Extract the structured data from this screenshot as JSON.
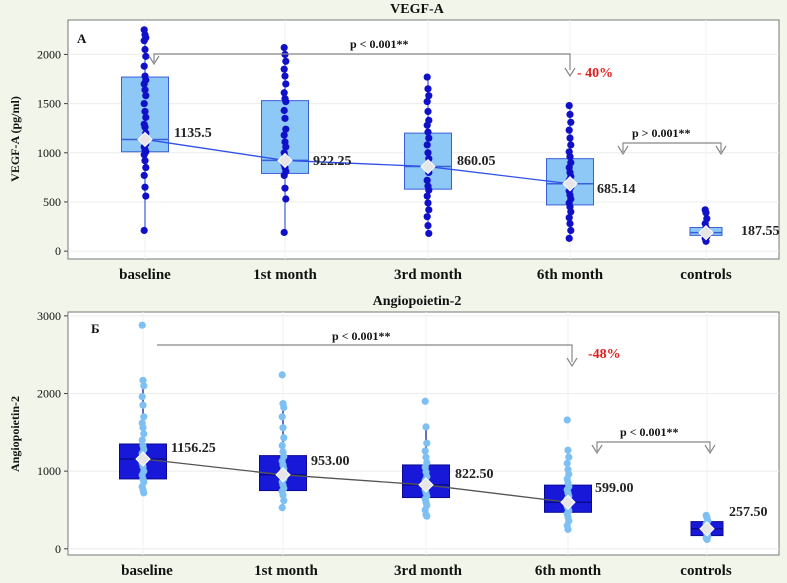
{
  "chart_data": [
    {
      "type": "box",
      "title": "VEGF-A",
      "panel_label": "A",
      "ylabel": "VEGF-A (pg/ml)",
      "xlabel": "",
      "ylim": [
        -80,
        2350
      ],
      "yticks": [
        0,
        500,
        1000,
        1500,
        2000
      ],
      "categories": [
        "baseline",
        "1st month",
        "3rd month",
        "6th month",
        "controls"
      ],
      "box_color": "#8ec8f6",
      "box_edge": "#3a5fd8",
      "point_color": "#1010c8",
      "line_color": "#3050e8",
      "boxes": [
        {
          "whisker_low": 210,
          "q1": 1010,
          "median": 1135.5,
          "q3": 1770,
          "whisker_high": 2250,
          "points": [
            2250,
            2200,
            2170,
            2140,
            2050,
            1980,
            1880,
            1780,
            1740,
            1700,
            1640,
            1580,
            1500,
            1420,
            1360,
            1290,
            1260,
            1200,
            1150,
            1120,
            1090,
            1060,
            1030,
            1010,
            980,
            920,
            850,
            770,
            650,
            560,
            210
          ]
        },
        {
          "whisker_low": 190,
          "q1": 790,
          "median": 922.25,
          "q3": 1530,
          "whisker_high": 2070,
          "points": [
            2070,
            2000,
            1930,
            1850,
            1780,
            1700,
            1610,
            1550,
            1520,
            1430,
            1350,
            1240,
            1180,
            1110,
            1060,
            1000,
            960,
            920,
            880,
            850,
            810,
            770,
            640,
            530,
            190
          ]
        },
        {
          "whisker_low": 180,
          "q1": 630,
          "median": 860.05,
          "q3": 1200,
          "whisker_high": 1770,
          "points": [
            1770,
            1650,
            1580,
            1520,
            1420,
            1330,
            1280,
            1210,
            1150,
            1080,
            1000,
            940,
            880,
            840,
            800,
            720,
            660,
            620,
            560,
            490,
            420,
            350,
            260,
            180
          ]
        },
        {
          "whisker_low": 130,
          "q1": 470,
          "median": 685.14,
          "q3": 940,
          "whisker_high": 1480,
          "points": [
            1480,
            1390,
            1310,
            1230,
            1150,
            1080,
            1010,
            960,
            900,
            850,
            800,
            760,
            720,
            690,
            650,
            610,
            570,
            530,
            490,
            450,
            400,
            340,
            280,
            210,
            130
          ]
        },
        {
          "whisker_low": 100,
          "q1": 160,
          "median": 187.55,
          "q3": 240,
          "whisker_high": 420,
          "points": [
            420,
            390,
            330,
            280,
            240,
            210,
            190,
            170,
            150,
            130,
            100
          ]
        }
      ],
      "median_labels": [
        "1135.5",
        "922.25",
        "860.05",
        "685.14",
        "187.55"
      ],
      "annotations": [
        {
          "text": "p < 0.001**",
          "from": "baseline",
          "to": "6th month"
        },
        {
          "text": "p > 0.001**",
          "from": "6th month",
          "to": "controls"
        },
        {
          "text": "- 40%",
          "at": "6th month"
        }
      ]
    },
    {
      "type": "box",
      "title": "Angiopoietin-2",
      "panel_label": "Б",
      "ylabel": "Angiopoietin-2",
      "xlabel": "",
      "ylim": [
        -80,
        3050
      ],
      "yticks": [
        0,
        1000,
        2000,
        3000
      ],
      "categories": [
        "baseline",
        "1st month",
        "3rd month",
        "6th month",
        "controls"
      ],
      "box_color": "#1818d8",
      "box_edge": "#0a0a90",
      "point_color": "#7ec0f4",
      "line_color": "#555555",
      "boxes": [
        {
          "whisker_low": 720,
          "q1": 900,
          "median": 1156.25,
          "q3": 1350,
          "whisker_high": 2170,
          "points": [
            2880,
            2170,
            2100,
            1960,
            1850,
            1700,
            1620,
            1560,
            1480,
            1400,
            1330,
            1280,
            1230,
            1180,
            1140,
            1100,
            1060,
            1000,
            950,
            900,
            860,
            800,
            760,
            720
          ]
        },
        {
          "whisker_low": 530,
          "q1": 750,
          "median": 953.0,
          "q3": 1200,
          "whisker_high": 1870,
          "points": [
            2240,
            1870,
            1820,
            1700,
            1560,
            1430,
            1330,
            1250,
            1190,
            1130,
            1080,
            1030,
            980,
            940,
            900,
            860,
            820,
            780,
            740,
            690,
            620,
            530
          ]
        },
        {
          "whisker_low": 420,
          "q1": 660,
          "median": 822.5,
          "q3": 1080,
          "whisker_high": 1570,
          "points": [
            1900,
            1570,
            1360,
            1260,
            1180,
            1110,
            1050,
            990,
            930,
            880,
            840,
            800,
            760,
            720,
            680,
            640,
            600,
            560,
            500,
            440,
            420
          ]
        },
        {
          "whisker_low": 250,
          "q1": 470,
          "median": 599.0,
          "q3": 820,
          "whisker_high": 1270,
          "points": [
            1660,
            1270,
            1180,
            1100,
            1020,
            960,
            900,
            850,
            800,
            760,
            720,
            680,
            640,
            610,
            580,
            550,
            520,
            490,
            450,
            410,
            360,
            300,
            250
          ]
        },
        {
          "whisker_low": 120,
          "q1": 170,
          "median": 257.5,
          "q3": 350,
          "whisker_high": 430,
          "points": [
            430,
            400,
            360,
            320,
            280,
            250,
            220,
            190,
            160,
            140,
            120
          ]
        }
      ],
      "median_labels": [
        "1156.25",
        "953.00",
        "822.50",
        "599.00",
        "257.50"
      ],
      "annotations": [
        {
          "text": "p < 0.001**",
          "from": "baseline",
          "to": "6th month"
        },
        {
          "text": "p < 0.001**",
          "from": "6th month",
          "to": "controls"
        },
        {
          "text": "-48%",
          "at": "6th month"
        }
      ]
    }
  ]
}
